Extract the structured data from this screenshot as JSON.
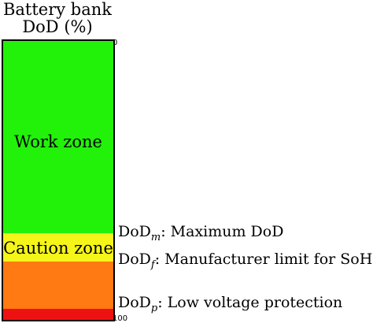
{
  "title": {
    "line1": "Battery bank",
    "line2": "DoD (%)"
  },
  "axis": {
    "top_tick": "0",
    "bottom_tick": "100"
  },
  "zones": [
    {
      "key": "work",
      "label": "Work zone",
      "color": "#22f20a",
      "dod_start": 0,
      "dod_end": 69
    },
    {
      "key": "caution",
      "label": "Caution zone",
      "color": "#f5f51a",
      "dod_start": 69,
      "dod_end": 79
    },
    {
      "key": "danger",
      "label": "",
      "color": "#ff7a12",
      "dod_start": 79,
      "dod_end": 96
    },
    {
      "key": "cutoff",
      "label": "",
      "color": "#ee1111",
      "dod_start": 96,
      "dod_end": 100
    }
  ],
  "annotations": [
    {
      "prefix": "DoD",
      "subscript": "m",
      "text": ": Maximum DoD"
    },
    {
      "prefix": "DoD",
      "subscript": "f",
      "text": ": Manufacturer limit for SoH"
    },
    {
      "prefix": "DoD",
      "subscript": "p",
      "text": ": Low voltage protection"
    }
  ]
}
